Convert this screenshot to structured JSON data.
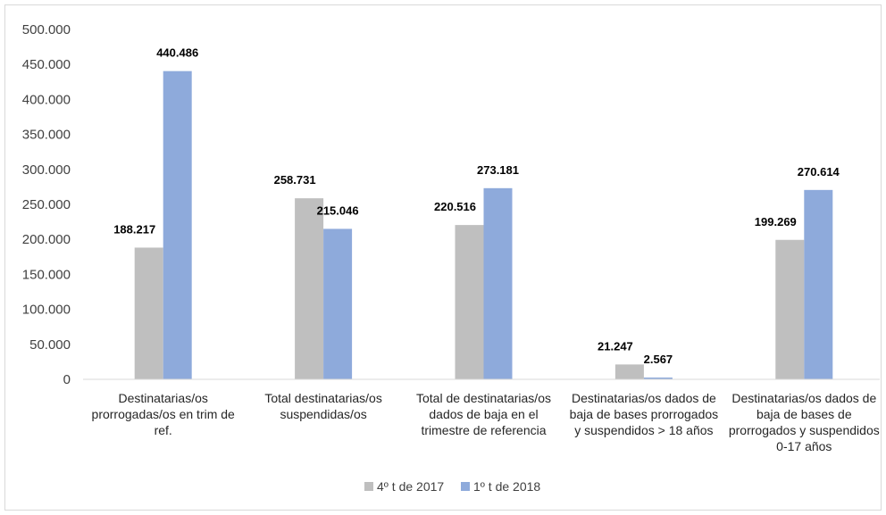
{
  "chart_data": {
    "type": "bar",
    "categories": [
      "Destinatarias/os prorrogadas/os en trim de ref.",
      "Total destinatarias/os suspendidas/os",
      "Total de destinatarias/os dados de baja en el trimestre de referencia",
      "Destinatarias/os dados de baja de bases prorrogados y suspendidos > 18 años",
      "Destinatarias/os  dados de baja de bases de prorrogados y suspendidos 0-17 años"
    ],
    "category_lines": [
      [
        "Destinatarias/os",
        "prorrogadas/os en trim de",
        "ref."
      ],
      [
        "Total destinatarias/os",
        "suspendidas/os"
      ],
      [
        "Total de destinatarias/os",
        "dados de baja en el",
        "trimestre de referencia"
      ],
      [
        "Destinatarias/os dados de",
        "baja de bases prorrogados",
        "y suspendidos > 18 años"
      ],
      [
        "Destinatarias/os  dados de",
        "baja de bases de",
        "prorrogados y suspendidos",
        "0-17 años"
      ]
    ],
    "series": [
      {
        "name": "4º t de 2017",
        "color": "#bfbfbf",
        "values": [
          188217,
          258731,
          220516,
          21247,
          199269
        ],
        "labels": [
          "188.217",
          "258.731",
          "220.516",
          "21.247",
          "199.269"
        ]
      },
      {
        "name": "1º t de 2018",
        "color": "#8eaadb",
        "values": [
          440486,
          215046,
          273181,
          2567,
          270614
        ],
        "labels": [
          "440.486",
          "215.046",
          "273.181",
          "2.567",
          "270.614"
        ]
      }
    ],
    "ylim": [
      0,
      500000
    ],
    "yticks": [
      0,
      50000,
      100000,
      150000,
      200000,
      250000,
      300000,
      350000,
      400000,
      450000,
      500000
    ],
    "ytick_labels": [
      "0",
      "50.000",
      "100.000",
      "150.000",
      "200.000",
      "250.000",
      "300.000",
      "350.000",
      "400.000",
      "450.000",
      "500.000"
    ],
    "grid": false,
    "legend_position": "bottom",
    "title": "",
    "xlabel": "",
    "ylabel": ""
  }
}
